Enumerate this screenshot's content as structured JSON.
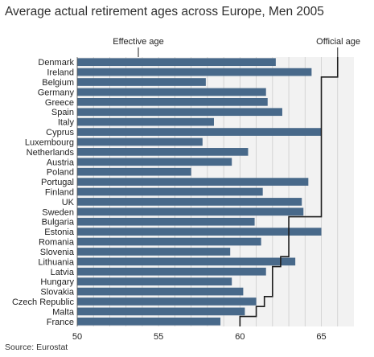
{
  "chart_data": {
    "type": "bar",
    "orientation": "horizontal",
    "title": "Average actual retirement ages across Europe, Men 2005",
    "source": "Source: Eurostat",
    "categories": [
      "Denmark",
      "Ireland",
      "Belgium",
      "Germany",
      "Greece",
      "Spain",
      "Italy",
      "Cyprus",
      "Luxembourg",
      "Netherlands",
      "Austria",
      "Poland",
      "Portugal",
      "Finland",
      "UK",
      "Sweden",
      "Bulgaria",
      "Estonia",
      "Romania",
      "Slovenia",
      "Lithuania",
      "Latvia",
      "Hungary",
      "Slovakia",
      "Czech Republic",
      "Malta",
      "France"
    ],
    "series": [
      {
        "name": "Effective age",
        "values": [
          62.2,
          64.4,
          57.9,
          61.6,
          61.7,
          62.6,
          58.4,
          65.0,
          57.7,
          60.5,
          59.5,
          57.0,
          64.2,
          61.4,
          63.8,
          63.9,
          60.9,
          65.0,
          61.3,
          59.4,
          63.4,
          61.6,
          59.5,
          60.2,
          61.0,
          60.3,
          58.8
        ]
      },
      {
        "name": "Official age",
        "values": [
          66,
          66,
          65,
          65,
          65,
          65,
          65,
          65,
          65,
          65,
          65,
          65,
          65,
          65,
          65,
          65,
          63,
          63,
          63,
          63,
          62.5,
          62,
          62,
          62,
          61.5,
          61,
          60
        ]
      }
    ],
    "xlim": [
      50,
      67
    ],
    "xticks": [
      50,
      55,
      60,
      65
    ],
    "annotations": {
      "effective_label": "Effective age",
      "official_label": "Official age"
    },
    "colors": {
      "bar": "#48698a",
      "official_line": "#1a1a1a",
      "plot_background": "#f2f2f2",
      "grid": "#cccccc"
    }
  }
}
